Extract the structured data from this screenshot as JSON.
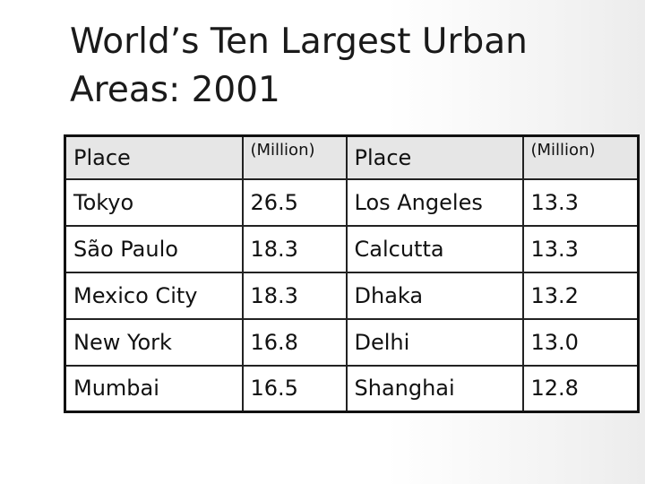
{
  "title": {
    "line1": "World’s Ten Largest Urban",
    "line2": "Areas: 2001"
  },
  "table": {
    "headers": [
      "Place",
      "(Million)",
      "Place",
      "(Million)"
    ],
    "rows": [
      [
        "Tokyo",
        "26.5",
        "Los Angeles",
        "13.3"
      ],
      [
        "São Paulo",
        "18.3",
        "Calcutta",
        "13.3"
      ],
      [
        "Mexico City",
        "18.3",
        "Dhaka",
        "13.2"
      ],
      [
        "New York",
        "16.8",
        "Delhi",
        "13.0"
      ],
      [
        "Mumbai",
        "16.5",
        "Shanghai",
        "12.8"
      ]
    ]
  }
}
